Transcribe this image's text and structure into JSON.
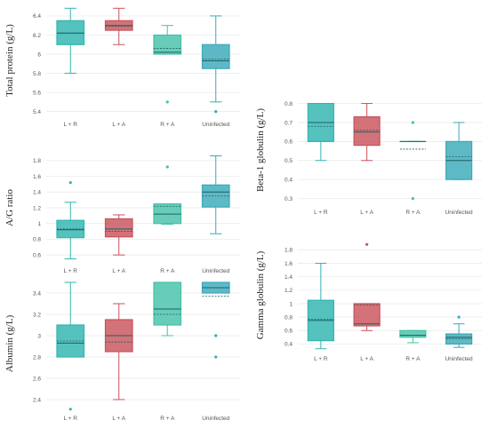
{
  "colors": {
    "lr": "#2fb5b0",
    "la": "#c9535a",
    "ra": "#45c2a8",
    "un": "#3aa9ba"
  },
  "chart_data": [
    {
      "id": "total-protein",
      "type": "box",
      "ylabel": "Total protein (g/L)",
      "ylim": [
        5.35,
        6.52
      ],
      "yticks": [
        5.4,
        5.6,
        5.8,
        6,
        6.2,
        6.4
      ],
      "categories": [
        "L + R",
        "L + A",
        "R + A",
        "Uninfected"
      ],
      "boxes": [
        {
          "min": 5.8,
          "q1": 6.1,
          "median": 6.22,
          "q3": 6.35,
          "max": 6.48,
          "mean": 6.22,
          "outliers": []
        },
        {
          "min": 6.1,
          "q1": 6.25,
          "median": 6.3,
          "q3": 6.35,
          "max": 6.48,
          "mean": 6.29,
          "outliers": []
        },
        {
          "min": 6.0,
          "q1": 6.0,
          "median": 6.02,
          "q3": 6.2,
          "max": 6.3,
          "mean": 6.06,
          "outliers": [
            5.5
          ]
        },
        {
          "min": 5.5,
          "q1": 5.85,
          "median": 5.93,
          "q3": 6.1,
          "max": 6.4,
          "mean": 5.95,
          "outliers": [
            5.4
          ]
        }
      ]
    },
    {
      "id": "ag-ratio",
      "type": "box",
      "ylabel": "A/G ratio",
      "ylim": [
        0.5,
        1.9
      ],
      "yticks": [
        0.6,
        0.8,
        1,
        1.2,
        1.4,
        1.6,
        1.8
      ],
      "categories": [
        "L + R",
        "L + A",
        "R + A",
        "Uninfected"
      ],
      "boxes": [
        {
          "min": 0.55,
          "q1": 0.82,
          "median": 0.92,
          "q3": 1.04,
          "max": 1.27,
          "mean": 0.93,
          "outliers": [
            1.52
          ]
        },
        {
          "min": 0.6,
          "q1": 0.83,
          "median": 0.93,
          "q3": 1.06,
          "max": 1.11,
          "mean": 0.9,
          "outliers": []
        },
        {
          "min": 0.99,
          "q1": 1.0,
          "median": 1.12,
          "q3": 1.25,
          "max": 1.25,
          "mean": 1.22,
          "outliers": [
            1.72
          ]
        },
        {
          "min": 0.87,
          "q1": 1.21,
          "median": 1.4,
          "q3": 1.49,
          "max": 1.86,
          "mean": 1.35,
          "outliers": []
        }
      ]
    },
    {
      "id": "albumin",
      "type": "box",
      "ylabel": "Albumin (g/L)",
      "ylim": [
        2.3,
        3.55
      ],
      "yticks": [
        2.4,
        2.6,
        2.8,
        3,
        3.2,
        3.4
      ],
      "categories": [
        "L + R",
        "L + A",
        "R + A",
        "Uninfected"
      ],
      "boxes": [
        {
          "min": 2.8,
          "q1": 2.8,
          "median": 2.93,
          "q3": 3.1,
          "max": 3.5,
          "mean": 2.95,
          "outliers": [
            2.31
          ]
        },
        {
          "min": 2.4,
          "q1": 2.85,
          "median": 3.0,
          "q3": 3.15,
          "max": 3.3,
          "mean": 2.94,
          "outliers": []
        },
        {
          "min": 3.0,
          "q1": 3.1,
          "median": 3.25,
          "q3": 3.5,
          "max": 3.5,
          "mean": 3.2,
          "outliers": []
        },
        {
          "min": 3.4,
          "q1": 3.4,
          "median": 3.45,
          "q3": 3.5,
          "max": 3.5,
          "mean": 3.37,
          "outliers": [
            3.0,
            2.8
          ]
        }
      ]
    },
    {
      "id": "beta1-globulin",
      "type": "box",
      "ylabel": "Beta-1 globulin (g/L)",
      "ylim": [
        0.27,
        0.84
      ],
      "yticks": [
        0.3,
        0.4,
        0.5,
        0.6,
        0.7,
        0.8
      ],
      "categories": [
        "L + R",
        "L + A",
        "R + A",
        "Uninfected"
      ],
      "boxes": [
        {
          "min": 0.5,
          "q1": 0.6,
          "median": 0.7,
          "q3": 0.8,
          "max": 0.8,
          "mean": 0.68,
          "outliers": []
        },
        {
          "min": 0.5,
          "q1": 0.58,
          "median": 0.65,
          "q3": 0.73,
          "max": 0.8,
          "mean": 0.66,
          "outliers": []
        },
        {
          "min": 0.6,
          "q1": 0.6,
          "median": 0.6,
          "q3": 0.6,
          "max": 0.6,
          "mean": 0.56,
          "outliers": [
            0.7,
            0.3
          ]
        },
        {
          "min": 0.4,
          "q1": 0.4,
          "median": 0.5,
          "q3": 0.6,
          "max": 0.7,
          "mean": 0.52,
          "outliers": []
        }
      ]
    },
    {
      "id": "gamma-globulin",
      "type": "box",
      "ylabel": "Gamma globulin (g/L)",
      "ylim": [
        0.3,
        1.95
      ],
      "yticks": [
        0.4,
        0.6,
        0.8,
        1,
        1.2,
        1.4,
        1.6,
        1.8
      ],
      "categories": [
        "L + R",
        "L + A",
        "R + A",
        "Uninfected"
      ],
      "boxes": [
        {
          "min": 0.33,
          "q1": 0.45,
          "median": 0.75,
          "q3": 1.05,
          "max": 1.6,
          "mean": 0.77,
          "outliers": []
        },
        {
          "min": 0.6,
          "q1": 0.67,
          "median": 0.7,
          "q3": 1.0,
          "max": 1.0,
          "mean": 0.98,
          "outliers": [
            1.88
          ]
        },
        {
          "min": 0.42,
          "q1": 0.5,
          "median": 0.53,
          "q3": 0.6,
          "max": 0.6,
          "mean": 0.53,
          "outliers": []
        },
        {
          "min": 0.35,
          "q1": 0.4,
          "median": 0.5,
          "q3": 0.55,
          "max": 0.7,
          "mean": 0.48,
          "outliers": [
            0.8
          ]
        }
      ]
    }
  ]
}
